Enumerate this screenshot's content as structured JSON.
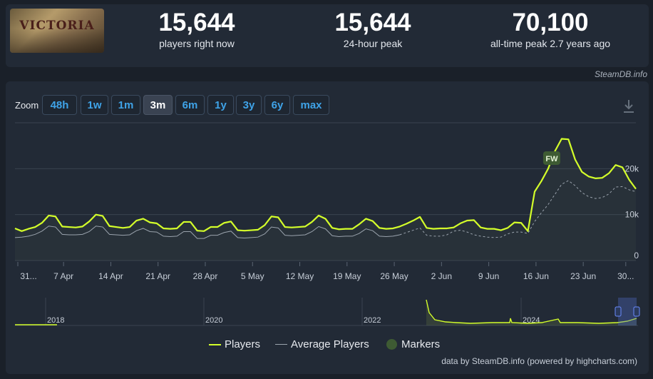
{
  "game": {
    "logo_text": "Victoria 3"
  },
  "stats": [
    {
      "value": "15,644",
      "label": "players right now"
    },
    {
      "value": "15,644",
      "label": "24-hour peak"
    },
    {
      "value": "70,100",
      "label": "all-time peak 2.7 years ago"
    }
  ],
  "credit_top": "SteamDB.info",
  "zoom": {
    "label": "Zoom",
    "buttons": [
      "48h",
      "1w",
      "1m",
      "3m",
      "6m",
      "1y",
      "3y",
      "6y",
      "max"
    ],
    "active": "3m"
  },
  "legend": {
    "players": "Players",
    "average": "Average Players",
    "markers": "Markers"
  },
  "credit_bottom": "data by SteamDB.info (powered by highcharts.com)",
  "colors": {
    "players": "#d4ff2a",
    "average": "#9aa3ad",
    "marker": "#3e5b33",
    "accent": "#3fa3e8"
  },
  "icons": {
    "download": "download-icon"
  },
  "chart_data": {
    "type": "line",
    "x_ticks": [
      "31...",
      "7 Apr",
      "14 Apr",
      "21 Apr",
      "28 Apr",
      "5 May",
      "12 May",
      "19 May",
      "26 May",
      "2 Jun",
      "9 Jun",
      "16 Jun",
      "23 Jun",
      "30..."
    ],
    "y_ticks": [
      "0",
      "10k",
      "20k"
    ],
    "ylim": [
      0,
      30000
    ],
    "xlim": [
      0,
      92
    ],
    "grid": true,
    "series": [
      {
        "name": "Players",
        "x": [
          0,
          1,
          2,
          3,
          4,
          5,
          6,
          7,
          8,
          9,
          10,
          11,
          12,
          13,
          14,
          15,
          16,
          17,
          18,
          19,
          20,
          21,
          22,
          23,
          24,
          25,
          26,
          27,
          28,
          29,
          30,
          31,
          32,
          33,
          34,
          35,
          36,
          37,
          38,
          39,
          40,
          41,
          42,
          43,
          44,
          45,
          46,
          47,
          48,
          49,
          50,
          51,
          52,
          53,
          54,
          55,
          56,
          57,
          58,
          59,
          60,
          61,
          62,
          63,
          64,
          65,
          66,
          67,
          68,
          69,
          70,
          71,
          72,
          73,
          74,
          75,
          76,
          77,
          78,
          79,
          80,
          81,
          82,
          83,
          84,
          85,
          86,
          87,
          88,
          89,
          90,
          91,
          92
        ],
        "values": [
          7000,
          6400,
          6900,
          7300,
          8200,
          9800,
          9600,
          7400,
          7300,
          7200,
          7400,
          8500,
          10000,
          9700,
          7500,
          7300,
          7100,
          7300,
          8700,
          9100,
          8300,
          8100,
          7000,
          6900,
          7000,
          8400,
          8400,
          6500,
          6400,
          7300,
          7300,
          8200,
          8500,
          6600,
          6500,
          6600,
          6700,
          7700,
          9600,
          9400,
          7300,
          7200,
          7300,
          7400,
          8400,
          9800,
          9100,
          7100,
          6800,
          6900,
          6900,
          7900,
          9100,
          8600,
          7100,
          6900,
          7000,
          7400,
          8000,
          8700,
          9500,
          7100,
          6900,
          7000,
          7000,
          7200,
          8100,
          8700,
          8800,
          7200,
          6900,
          6900,
          6600,
          7100,
          8300,
          8200,
          6400,
          15000,
          17300,
          20000,
          23800,
          26500,
          26400,
          22000,
          19300,
          18300,
          17900,
          18000,
          19000,
          20800,
          20300,
          17600,
          15600
        ]
      },
      {
        "name": "Average Players",
        "x": [
          0,
          1,
          2,
          3,
          4,
          5,
          6,
          7,
          8,
          9,
          10,
          11,
          12,
          13,
          14,
          15,
          16,
          17,
          18,
          19,
          20,
          21,
          22,
          23,
          24,
          25,
          26,
          27,
          28,
          29,
          30,
          31,
          32,
          33,
          34,
          35,
          36,
          37,
          38,
          39,
          40,
          41,
          42,
          43,
          44,
          45,
          46,
          47,
          48,
          49,
          50,
          51,
          52,
          53,
          54,
          55,
          56,
          57,
          58,
          59,
          60,
          61,
          62,
          63,
          64,
          65,
          66,
          67,
          68,
          69,
          70,
          71,
          72,
          73,
          74,
          75,
          76,
          77,
          78,
          79,
          80,
          81,
          82,
          83,
          84,
          85,
          86,
          87,
          88,
          89,
          90,
          91,
          92
        ],
        "values": [
          5000,
          5100,
          5300,
          5700,
          6400,
          7500,
          7300,
          5700,
          5600,
          5600,
          5700,
          6300,
          7500,
          7300,
          5700,
          5600,
          5500,
          5600,
          6500,
          7000,
          6300,
          6200,
          5300,
          5200,
          5300,
          6300,
          6300,
          4800,
          4800,
          5500,
          5500,
          6100,
          6400,
          5000,
          4900,
          5000,
          5100,
          5800,
          7300,
          7100,
          5500,
          5400,
          5500,
          5600,
          6300,
          7400,
          6900,
          5400,
          5200,
          5300,
          5300,
          5900,
          6900,
          6500,
          5300,
          5200,
          5300,
          5600,
          6100,
          6600,
          7100,
          5500,
          5300,
          5300,
          5600,
          6400,
          6600,
          6200,
          5600,
          5300,
          5100,
          5000,
          5100,
          5800,
          6200,
          6200,
          5900,
          8500,
          10400,
          12200,
          14400,
          16600,
          17400,
          16300,
          14800,
          13900,
          13500,
          13700,
          14500,
          16000,
          16100,
          15400,
          15000
        ]
      }
    ],
    "markers": [
      {
        "label": "FW",
        "x": 79
      }
    ],
    "navigator": {
      "x_ticks": [
        "2018",
        "2020",
        "2022",
        "2024"
      ]
    }
  }
}
